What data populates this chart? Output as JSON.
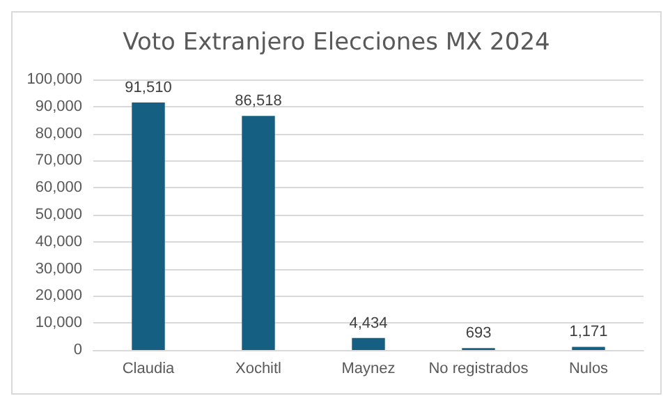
{
  "chart_data": {
    "type": "bar",
    "title": "Voto Extranjero Elecciones MX 2024",
    "categories": [
      "Claudia",
      "Xochitl",
      "Maynez",
      "No registrados",
      "Nulos"
    ],
    "values": [
      91510,
      86518,
      4434,
      693,
      1171
    ],
    "color": "#156082",
    "value_labels": [
      "91,510",
      "86,518",
      "4,434",
      "693",
      "1,171"
    ],
    "ylim": [
      0,
      100000
    ],
    "yticks": [
      0,
      {
        "value": 10000,
        "label": "10,000"
      },
      {
        "value": 20000,
        "label": "20,000"
      },
      {
        "value": 30000,
        "label": "30,000"
      },
      {
        "value": 40000,
        "label": "40,000"
      },
      {
        "value": 50000,
        "label": "50,000"
      },
      {
        "value": 60000,
        "label": "60,000"
      },
      {
        "value": 70000,
        "label": "70,000"
      },
      {
        "value": 80000,
        "label": "80,000"
      },
      {
        "value": 90000,
        "label": "90,000"
      },
      {
        "value": 100000,
        "label": "100,000"
      }
    ],
    "grid": "y"
  }
}
